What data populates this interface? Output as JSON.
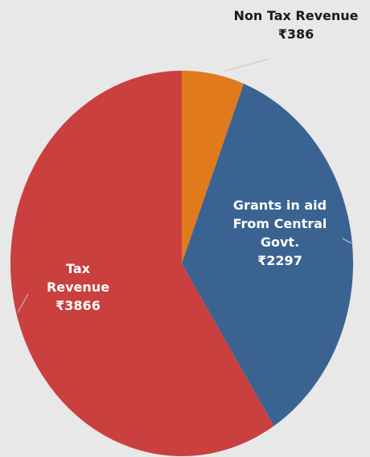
{
  "chart_data": {
    "type": "pie",
    "categories": [
      "Non Tax Revenue",
      "Grants in aid From Central Govt.",
      "Tax Revenue"
    ],
    "values": [
      386,
      2297,
      3866
    ],
    "value_labels": [
      "₹386",
      "₹2297",
      "₹3866"
    ],
    "colors": [
      "#e07a1b",
      "#3a6391",
      "#c9403f"
    ]
  }
}
